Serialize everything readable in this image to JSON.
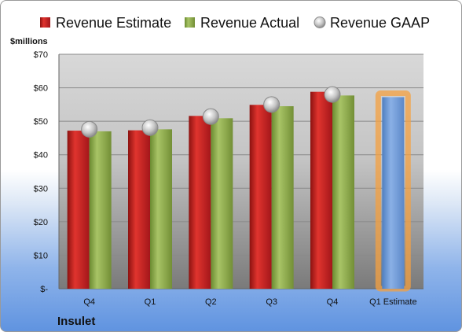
{
  "chart_data": {
    "type": "bar",
    "company": "Insulet",
    "units_label": "$millions",
    "categories": [
      "Q4",
      "Q1",
      "Q2",
      "Q3",
      "Q4",
      "Q1 Estimate"
    ],
    "y_tick_labels": [
      "$-",
      "$10",
      "$20",
      "$30",
      "$40",
      "$50",
      "$60",
      "$70"
    ],
    "ylim": [
      0,
      70
    ],
    "grid": true,
    "legend_position": "top",
    "series": [
      {
        "name": "Revenue Estimate",
        "type": "bar",
        "color": "#c8201c",
        "values": [
          47.2,
          47.3,
          51.6,
          54.9,
          58.8,
          null
        ]
      },
      {
        "name": "Revenue Actual",
        "type": "bar",
        "color": "#8fae4c",
        "values": [
          47.0,
          47.6,
          50.9,
          54.5,
          57.7,
          null
        ]
      },
      {
        "name": "Revenue GAAP",
        "type": "marker",
        "color": "#b8b8b8",
        "values": [
          47.6,
          48.1,
          51.4,
          55.0,
          58.0,
          null
        ]
      },
      {
        "name": "Q1 Estimate",
        "type": "bar",
        "color": "#6f9ad6",
        "highlight": "#f4a040",
        "values": [
          null,
          null,
          null,
          null,
          null,
          57.2
        ]
      }
    ]
  }
}
